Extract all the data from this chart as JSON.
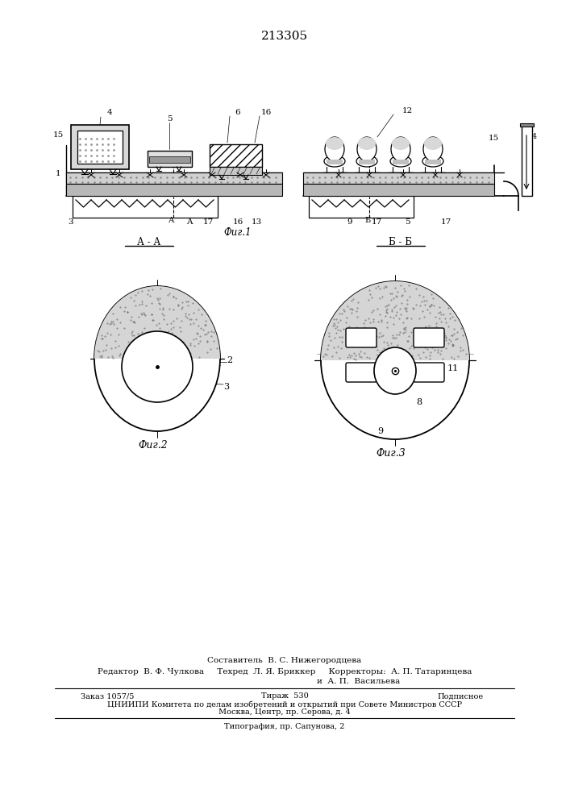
{
  "patent_number": "213305",
  "background_color": "#ffffff",
  "fig1_label": "Фиг.1",
  "fig2_label": "Фиг.2",
  "fig3_label": "Фиг.3",
  "AA_label": "А - А",
  "BB_label": "Б - Б",
  "footer_line1": "Составитель  В. С. Нижегородцева",
  "footer_line2": "Редактор  В. Ф. Чулкова     Техред  Л. Я. Бриккер     Корректоры:  А. П. Татаринцева",
  "footer_line3": "и  А. П.  Васильева",
  "footer_line4a": "Заказ 1057/5",
  "footer_line4b": "Тираж  530",
  "footer_line4c": "Подписное",
  "footer_line5": "ЦНИИПИ Комитета по делам изобретений и открытий при Совете Министров СССР",
  "footer_line6": "Москва, Центр, пр. Серова, д. 4",
  "footer_line7": "Типография, пр. Сапунова, 2"
}
